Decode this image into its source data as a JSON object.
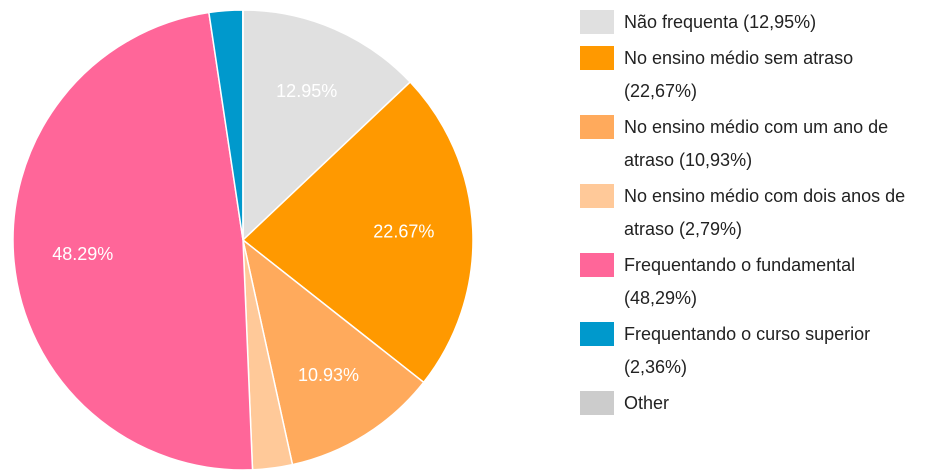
{
  "chart_data": {
    "type": "pie",
    "categories": [
      "Não frequenta (12,95%)",
      "No ensino médio sem atraso (22,67%)",
      "No ensino médio com um ano de atraso (10,93%)",
      "No ensino médio com dois anos de atraso (2,79%)",
      "Frequentando o fundamental (48,29%)",
      "Frequentando o curso superior (2,36%)",
      "Other"
    ],
    "values": [
      12.95,
      22.67,
      10.93,
      2.79,
      48.29,
      2.36,
      0.01
    ],
    "value_labels": [
      "12.95%",
      "22.67%",
      "10.93%",
      null,
      "48.29%",
      null,
      null
    ],
    "colors": [
      "#e0e0e0",
      "#ff9900",
      "#ffaa5c",
      "#ffc999",
      "#ff6699",
      "#0099cc",
      "#cccccc"
    ],
    "legend": "right"
  }
}
